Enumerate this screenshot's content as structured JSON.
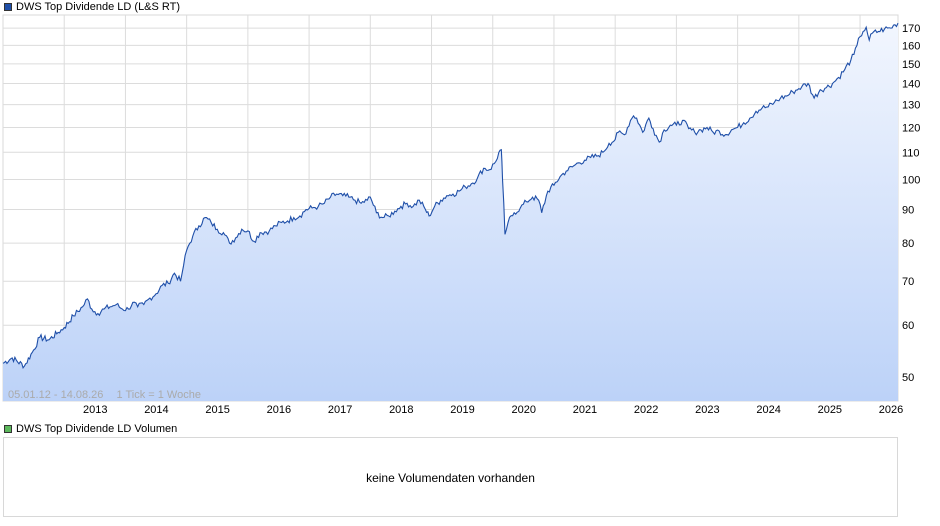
{
  "price_legend": {
    "label": "DWS Top Dividende LD (L&S RT)",
    "color": "#1f4fa8"
  },
  "volume_legend": {
    "label": "DWS Top Dividende LD Volumen",
    "color": "#5cb85c"
  },
  "volume_panel": {
    "message": "keine Volumendaten vorhanden"
  },
  "chart_info": {
    "range_text": "05.01.12 - 14.08.26",
    "tick_text": "1 Tick = 1 Woche"
  },
  "colors": {
    "line": "#1f4fa8",
    "fill_top": "#f2f6fe",
    "fill_bottom": "#bcd2f8",
    "grid": "#dcdcdc"
  },
  "chart_data": {
    "type": "area",
    "title": "DWS Top Dividende LD (L&S RT)",
    "xlabel": "",
    "ylabel": "",
    "y_scale": "log",
    "x_range": [
      2012.0,
      2026.62
    ],
    "ylim": [
      46,
      178
    ],
    "grid": true,
    "y_ticks": [
      50,
      60,
      70,
      80,
      90,
      100,
      110,
      120,
      130,
      140,
      150,
      160,
      170
    ],
    "x_ticks": [
      2013,
      2014,
      2015,
      2016,
      2017,
      2018,
      2019,
      2020,
      2021,
      2022,
      2023,
      2024,
      2025,
      2026
    ],
    "series": [
      {
        "name": "DWS Top Dividende LD (L&S RT)",
        "points": [
          [
            2012.0,
            52.5
          ],
          [
            2012.15,
            53.5
          ],
          [
            2012.35,
            52.0
          ],
          [
            2012.5,
            55.0
          ],
          [
            2012.6,
            57.5
          ],
          [
            2012.75,
            57.0
          ],
          [
            2012.9,
            58.5
          ],
          [
            2013.0,
            59.5
          ],
          [
            2013.15,
            62.0
          ],
          [
            2013.3,
            64.0
          ],
          [
            2013.38,
            65.8
          ],
          [
            2013.45,
            63.5
          ],
          [
            2013.55,
            62.5
          ],
          [
            2013.65,
            63.5
          ],
          [
            2013.75,
            64.0
          ],
          [
            2013.85,
            64.5
          ],
          [
            2013.95,
            63.5
          ],
          [
            2014.05,
            63.5
          ],
          [
            2014.12,
            65.0
          ],
          [
            2014.2,
            64.0
          ],
          [
            2014.3,
            64.5
          ],
          [
            2014.4,
            66.0
          ],
          [
            2014.5,
            67.0
          ],
          [
            2014.6,
            69.0
          ],
          [
            2014.7,
            69.5
          ],
          [
            2014.8,
            72.0
          ],
          [
            2014.9,
            70.0
          ],
          [
            2014.95,
            74.0
          ],
          [
            2015.0,
            78.0
          ],
          [
            2015.1,
            82.0
          ],
          [
            2015.2,
            85.0
          ],
          [
            2015.3,
            87.5
          ],
          [
            2015.4,
            86.0
          ],
          [
            2015.5,
            84.0
          ],
          [
            2015.6,
            83.0
          ],
          [
            2015.7,
            80.0
          ],
          [
            2015.8,
            81.5
          ],
          [
            2015.9,
            84.0
          ],
          [
            2016.0,
            83.5
          ],
          [
            2016.1,
            80.5
          ],
          [
            2016.2,
            83.0
          ],
          [
            2016.35,
            83.5
          ],
          [
            2016.45,
            85.0
          ],
          [
            2016.55,
            86.0
          ],
          [
            2016.65,
            86.5
          ],
          [
            2016.75,
            87.5
          ],
          [
            2016.85,
            88.0
          ],
          [
            2016.95,
            90.0
          ],
          [
            2017.05,
            90.5
          ],
          [
            2017.15,
            91.0
          ],
          [
            2017.25,
            92.0
          ],
          [
            2017.35,
            94.0
          ],
          [
            2017.45,
            95.0
          ],
          [
            2017.55,
            94.5
          ],
          [
            2017.65,
            94.0
          ],
          [
            2017.75,
            93.0
          ],
          [
            2017.85,
            92.0
          ],
          [
            2017.95,
            93.0
          ],
          [
            2018.0,
            94.0
          ],
          [
            2018.1,
            89.0
          ],
          [
            2018.2,
            87.5
          ],
          [
            2018.3,
            88.0
          ],
          [
            2018.4,
            89.5
          ],
          [
            2018.5,
            91.0
          ],
          [
            2018.6,
            92.0
          ],
          [
            2018.7,
            91.0
          ],
          [
            2018.8,
            93.0
          ],
          [
            2018.9,
            90.0
          ],
          [
            2018.96,
            88.0
          ],
          [
            2019.05,
            91.0
          ],
          [
            2019.15,
            93.0
          ],
          [
            2019.25,
            94.5
          ],
          [
            2019.35,
            95.0
          ],
          [
            2019.45,
            96.0
          ],
          [
            2019.55,
            97.5
          ],
          [
            2019.65,
            98.5
          ],
          [
            2019.75,
            100.5
          ],
          [
            2019.85,
            104.0
          ],
          [
            2019.95,
            103.5
          ],
          [
            2020.05,
            106.5
          ],
          [
            2020.1,
            110.0
          ],
          [
            2020.14,
            111.0
          ],
          [
            2020.16,
            100.0
          ],
          [
            2020.2,
            82.5
          ],
          [
            2020.25,
            86.0
          ],
          [
            2020.35,
            89.0
          ],
          [
            2020.45,
            90.5
          ],
          [
            2020.55,
            92.5
          ],
          [
            2020.65,
            94.0
          ],
          [
            2020.75,
            93.0
          ],
          [
            2020.8,
            89.0
          ],
          [
            2020.9,
            96.0
          ],
          [
            2021.0,
            98.0
          ],
          [
            2021.1,
            101.0
          ],
          [
            2021.2,
            103.0
          ],
          [
            2021.3,
            104.5
          ],
          [
            2021.4,
            106.0
          ],
          [
            2021.5,
            107.0
          ],
          [
            2021.6,
            108.0
          ],
          [
            2021.7,
            108.5
          ],
          [
            2021.8,
            110.0
          ],
          [
            2021.9,
            113.5
          ],
          [
            2022.0,
            115.0
          ],
          [
            2022.05,
            118.0
          ],
          [
            2022.15,
            117.0
          ],
          [
            2022.25,
            123.0
          ],
          [
            2022.3,
            125.0
          ],
          [
            2022.35,
            124.0
          ],
          [
            2022.45,
            118.0
          ],
          [
            2022.55,
            124.0
          ],
          [
            2022.62,
            119.5
          ],
          [
            2022.72,
            114.0
          ],
          [
            2022.8,
            119.0
          ],
          [
            2022.9,
            121.0
          ],
          [
            2023.0,
            121.0
          ],
          [
            2023.1,
            123.0
          ],
          [
            2023.2,
            119.5
          ],
          [
            2023.3,
            118.0
          ],
          [
            2023.4,
            119.0
          ],
          [
            2023.5,
            120.0
          ],
          [
            2023.6,
            118.0
          ],
          [
            2023.7,
            118.5
          ],
          [
            2023.8,
            117.0
          ],
          [
            2023.9,
            119.0
          ],
          [
            2024.0,
            120.0
          ],
          [
            2024.1,
            122.0
          ],
          [
            2024.2,
            124.0
          ],
          [
            2024.3,
            127.0
          ],
          [
            2024.4,
            128.5
          ],
          [
            2024.5,
            129.0
          ],
          [
            2024.6,
            131.0
          ],
          [
            2024.7,
            133.0
          ],
          [
            2024.8,
            134.0
          ],
          [
            2024.9,
            136.0
          ],
          [
            2025.0,
            137.5
          ],
          [
            2025.05,
            138.5
          ],
          [
            2025.15,
            140.0
          ],
          [
            2025.25,
            133.0
          ],
          [
            2025.35,
            137.0
          ],
          [
            2025.45,
            138.0
          ],
          [
            2025.55,
            140.0
          ],
          [
            2025.65,
            143.0
          ],
          [
            2025.75,
            147.0
          ],
          [
            2025.85,
            152.0
          ],
          [
            2025.9,
            155.0
          ],
          [
            2025.95,
            160.0
          ],
          [
            2026.0,
            165.0
          ],
          [
            2026.05,
            168.0
          ],
          [
            2026.1,
            170.5
          ],
          [
            2026.15,
            163.0
          ],
          [
            2026.2,
            167.0
          ],
          [
            2026.3,
            168.0
          ],
          [
            2026.4,
            169.5
          ],
          [
            2026.5,
            170.0
          ],
          [
            2026.57,
            172.0
          ],
          [
            2026.62,
            173.0
          ]
        ]
      }
    ]
  }
}
